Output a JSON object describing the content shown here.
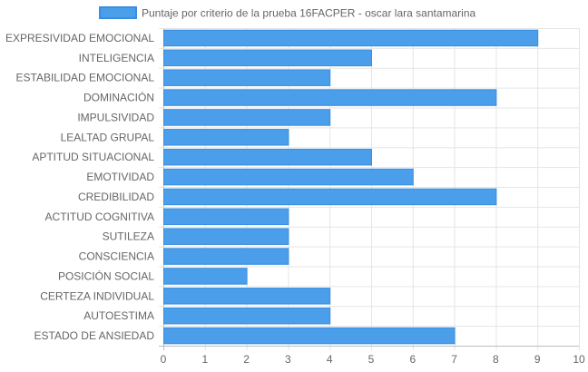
{
  "chart_data": {
    "type": "bar",
    "orientation": "horizontal",
    "categories": [
      "EXPRESIVIDAD EMOCIONAL",
      "INTELIGENCIA",
      "ESTABILIDAD EMOCIONAL",
      "DOMINACIÓN",
      "IMPULSIVIDAD",
      "LEALTAD GRUPAL",
      "APTITUD SITUACIONAL",
      "EMOTIVIDAD",
      "CREDIBILIDAD",
      "ACTITUD COGNITIVA",
      "SUTILEZA",
      "CONSCIENCIA",
      "POSICIÓN SOCIAL",
      "CERTEZA INDIVIDUAL",
      "AUTOESTIMA",
      "ESTADO DE ANSIEDAD"
    ],
    "series": [
      {
        "name": "Puntaje por criterio de la prueba 16FACPER - oscar lara santamarina",
        "values": [
          9,
          5,
          4,
          8,
          4,
          3,
          5,
          6,
          8,
          3,
          3,
          3,
          2,
          4,
          4,
          7
        ]
      }
    ],
    "xlim": [
      0,
      10
    ],
    "xticks": [
      "0",
      "1",
      "2",
      "3",
      "4",
      "5",
      "6",
      "7",
      "8",
      "9",
      "10"
    ],
    "grid": true,
    "legend_position": "top-center",
    "colors": {
      "bar_fill": "#4a9eea",
      "bar_stroke": "#3a8ee0",
      "grid": "#e5e5e5",
      "axis": "#bdbdbd",
      "text": "#666666"
    }
  }
}
